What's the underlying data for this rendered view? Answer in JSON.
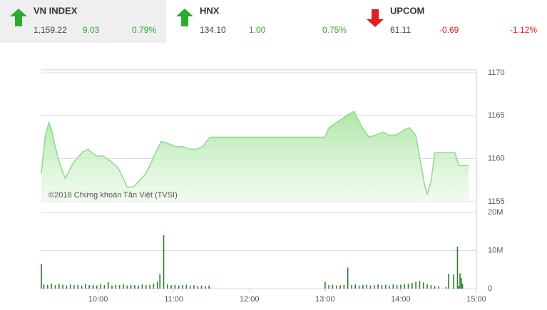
{
  "indices": [
    {
      "name": "VN INDEX",
      "value": "1,159.22",
      "change": "9.03",
      "percent": "0.79%",
      "direction": "up",
      "selected": true
    },
    {
      "name": "HNX",
      "value": "134.10",
      "change": "1.00",
      "percent": "0.75%",
      "direction": "up",
      "selected": false
    },
    {
      "name": "UPCOM",
      "value": "61.11",
      "change": "-0.69",
      "percent": "-1.12%",
      "direction": "down",
      "selected": false
    }
  ],
  "chart_data": [
    {
      "type": "area",
      "annotation": "©2018 Chứng khoán Tân Việt (TVSI)",
      "x": [
        "09:15",
        "09:18",
        "09:21",
        "09:23",
        "09:26",
        "09:30",
        "09:34",
        "09:39",
        "09:43",
        "09:48",
        "09:52",
        "09:56",
        "09:59",
        "10:04",
        "10:10",
        "10:16",
        "10:20",
        "10:23",
        "10:28",
        "10:32",
        "10:37",
        "10:41",
        "10:46",
        "10:50",
        "10:55",
        "11:01",
        "11:07",
        "11:13",
        "11:18",
        "11:23",
        "11:28",
        "11:30",
        "13:00",
        "13:03",
        "13:08",
        "13:14",
        "13:18",
        "13:23",
        "13:27",
        "13:31",
        "13:35",
        "13:41",
        "13:46",
        "13:51",
        "13:57",
        "14:02",
        "14:07",
        "14:12",
        "14:15",
        "14:19",
        "14:21",
        "14:24",
        "14:27",
        "14:32",
        "14:36",
        "14:43",
        "14:46",
        "14:54"
      ],
      "values": [
        1158.3,
        1162.6,
        1164.2,
        1163.4,
        1161.4,
        1159.2,
        1157.7,
        1159.2,
        1160.0,
        1160.8,
        1161.1,
        1160.6,
        1160.3,
        1160.3,
        1159.7,
        1158.9,
        1157.7,
        1156.7,
        1156.7,
        1157.3,
        1158.1,
        1159.2,
        1160.8,
        1162.0,
        1161.8,
        1161.4,
        1161.4,
        1161.1,
        1161.1,
        1161.4,
        1162.4,
        1162.5,
        1162.5,
        1163.6,
        1164.1,
        1164.7,
        1165.1,
        1165.5,
        1164.3,
        1163.3,
        1162.5,
        1162.8,
        1163.1,
        1162.7,
        1162.8,
        1163.3,
        1163.6,
        1162.7,
        1160.2,
        1156.9,
        1155.9,
        1157.3,
        1160.7,
        1160.7,
        1160.7,
        1160.7,
        1159.2,
        1159.2
      ],
      "color": "#8fd88f",
      "xlim": [
        "09:15",
        "15:00"
      ],
      "ylim": [
        1155,
        1170
      ],
      "yticks": [
        1155,
        1160,
        1165,
        1170
      ],
      "grid": true
    },
    {
      "type": "bar",
      "x": [
        "09:15",
        "09:17",
        "09:20",
        "09:23",
        "09:26",
        "09:29",
        "09:32",
        "09:35",
        "09:38",
        "09:41",
        "09:44",
        "09:47",
        "09:50",
        "09:53",
        "09:56",
        "09:59",
        "10:02",
        "10:05",
        "10:08",
        "10:11",
        "10:14",
        "10:17",
        "10:20",
        "10:23",
        "10:26",
        "10:29",
        "10:32",
        "10:35",
        "10:38",
        "10:41",
        "10:44",
        "10:47",
        "10:49",
        "10:52",
        "10:55",
        "10:58",
        "11:01",
        "11:04",
        "11:07",
        "11:10",
        "11:13",
        "11:16",
        "11:19",
        "11:22",
        "11:25",
        "11:28",
        "13:00",
        "13:03",
        "13:06",
        "13:09",
        "13:12",
        "13:15",
        "13:18",
        "13:21",
        "13:24",
        "13:27",
        "13:30",
        "13:33",
        "13:36",
        "13:39",
        "13:42",
        "13:45",
        "13:48",
        "13:51",
        "13:54",
        "13:57",
        "14:00",
        "14:03",
        "14:06",
        "14:09",
        "14:12",
        "14:15",
        "14:18",
        "14:21",
        "14:24",
        "14:27",
        "14:30",
        "14:36",
        "14:38",
        "14:42",
        "14:45",
        "14:46",
        "14:47",
        "14:48",
        "14:49"
      ],
      "values": [
        6500000,
        1100000,
        1000000,
        1300000,
        900000,
        1200000,
        1000000,
        800000,
        1100000,
        900000,
        1000000,
        800000,
        1200000,
        900000,
        1000000,
        800000,
        1100000,
        900000,
        1700000,
        800000,
        1000000,
        900000,
        1200000,
        800000,
        1000000,
        900000,
        800000,
        1100000,
        900000,
        1000000,
        1300000,
        1800000,
        3800000,
        14000000,
        1100000,
        900000,
        1000000,
        800000,
        900000,
        1000000,
        800000,
        900000,
        700000,
        800000,
        700000,
        800000,
        1800000,
        900000,
        1000000,
        800000,
        900000,
        1000000,
        5500000,
        900000,
        1100000,
        800000,
        900000,
        1000000,
        800000,
        900000,
        1100000,
        900000,
        1000000,
        800000,
        1100000,
        900000,
        1000000,
        1200000,
        1300000,
        1500000,
        1800000,
        2000000,
        1600000,
        1200000,
        900000,
        700000,
        600000,
        400000,
        3900000,
        3700000,
        11000000,
        700000,
        4000000,
        2800000,
        1200000
      ],
      "color": "#2d7a2d",
      "xlim": [
        "09:15",
        "15:00"
      ],
      "ylim": [
        0,
        20000000
      ],
      "yticks": [
        0,
        {
          "value": 10000000,
          "label": "10M"
        },
        {
          "value": 20000000,
          "label": "20M"
        }
      ],
      "xticks": [
        "10:00",
        "11:00",
        "12:00",
        "13:00",
        "14:00",
        "15:00"
      ],
      "grid": true
    }
  ]
}
